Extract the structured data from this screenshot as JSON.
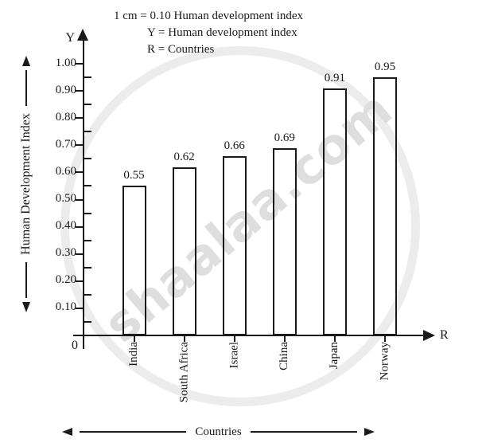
{
  "legend": {
    "scale_note": "1 cm = 0.10 Human development index",
    "y_note": "Y = Human development index",
    "r_note": "R = Countries"
  },
  "axes": {
    "y_axis_symbol": "Y",
    "x_axis_symbol": "R",
    "origin_label": "0",
    "y_axis_caption": "Human Development Index",
    "x_axis_caption": "Countries",
    "y_tick_labels": [
      "1.00",
      "0.90",
      "0.80",
      "0.70",
      "0.60",
      "0.50",
      "0.40",
      "0.30",
      "0.20",
      "0.10"
    ]
  },
  "chart_data": {
    "type": "bar",
    "categories": [
      "India",
      "South Africa",
      "Israel",
      "China",
      "Japan",
      "Norway"
    ],
    "values": [
      0.55,
      0.62,
      0.66,
      0.69,
      0.91,
      0.95
    ],
    "bar_labels": [
      "0.55",
      "0.62",
      "0.66",
      "0.69",
      "0.91",
      "0.95"
    ],
    "title": "",
    "xlabel": "Countries",
    "ylabel": "Human Development Index",
    "ylim": [
      0,
      1.0
    ],
    "y_tick_step": 0.1,
    "y_minor_tick_step": 0.05,
    "grid": false,
    "legend_position": "top",
    "bar_fill": "transparent",
    "bar_edge_color": "#1a1a1a"
  },
  "watermark": {
    "text": "shaalaa.com",
    "text_color": "#dedede",
    "circle_color": "#ececec"
  }
}
